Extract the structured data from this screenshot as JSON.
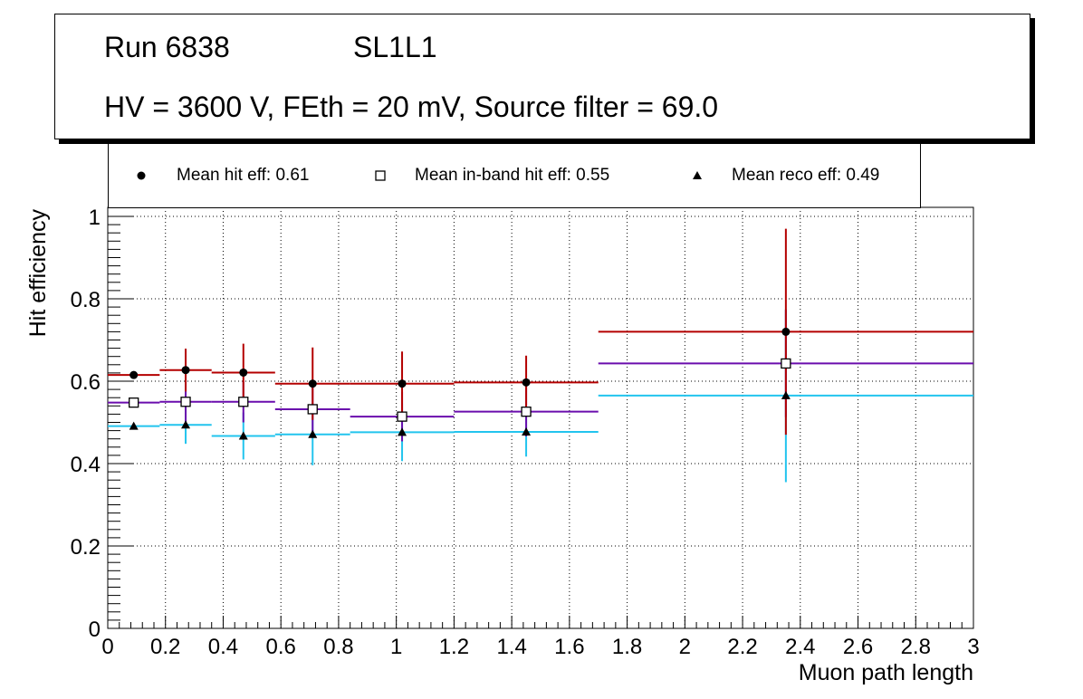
{
  "title": {
    "run": "Run 6838",
    "layer": "SL1L1",
    "conditions": "HV = 3600 V, FEth = 20 mV, Source filter = 69.0"
  },
  "colors": {
    "hit": "#b40000",
    "inband": "#6a0dad",
    "reco": "#22c4ee"
  },
  "chart_data": {
    "type": "scatter",
    "xlabel": "Muon path length",
    "ylabel": "Hit efficiency",
    "xlim": [
      0,
      3
    ],
    "ylim": [
      0,
      1.02
    ],
    "xticks": [
      "0",
      "0.2",
      "0.4",
      "0.6",
      "0.8",
      "1",
      "1.2",
      "1.4",
      "1.6",
      "1.8",
      "2",
      "2.2",
      "2.4",
      "2.6",
      "2.8",
      "3"
    ],
    "yticks": [
      "0",
      "0.2",
      "0.4",
      "0.6",
      "0.8",
      "1"
    ],
    "grid": true,
    "legend": [
      {
        "marker": "circle",
        "label": "Mean hit  eff: 0.61"
      },
      {
        "marker": "open-square",
        "label": "Mean in-band hit eff: 0.55"
      },
      {
        "marker": "triangle",
        "label": "Mean reco eff: 0.49"
      }
    ],
    "bins": [
      {
        "low": 0.0,
        "high": 0.18,
        "center": 0.09
      },
      {
        "low": 0.18,
        "high": 0.36,
        "center": 0.27
      },
      {
        "low": 0.36,
        "high": 0.58,
        "center": 0.47
      },
      {
        "low": 0.58,
        "high": 0.84,
        "center": 0.71
      },
      {
        "low": 0.84,
        "high": 1.2,
        "center": 1.02
      },
      {
        "low": 1.2,
        "high": 1.7,
        "center": 1.45
      },
      {
        "low": 1.7,
        "high": 3.0,
        "center": 2.35
      }
    ],
    "series": [
      {
        "name": "Mean hit eff",
        "key": "hit",
        "marker": "circle",
        "values": [
          0.615,
          0.627,
          0.621,
          0.594,
          0.594,
          0.597,
          0.72
        ],
        "errors": [
          0.005,
          0.052,
          0.07,
          0.088,
          0.078,
          0.065,
          0.25
        ]
      },
      {
        "name": "Mean in-band hit eff",
        "key": "inband",
        "marker": "open-square",
        "values": [
          0.548,
          0.55,
          0.55,
          0.532,
          0.514,
          0.526,
          0.643
        ],
        "errors": [
          0.005,
          0.05,
          0.05,
          0.068,
          0.06,
          0.06,
          0.13
        ]
      },
      {
        "name": "Mean reco eff",
        "key": "reco",
        "marker": "triangle",
        "values": [
          0.491,
          0.494,
          0.467,
          0.471,
          0.476,
          0.477,
          0.565
        ],
        "errors": [
          0.005,
          0.046,
          0.057,
          0.075,
          0.07,
          0.06,
          0.21
        ]
      }
    ]
  }
}
